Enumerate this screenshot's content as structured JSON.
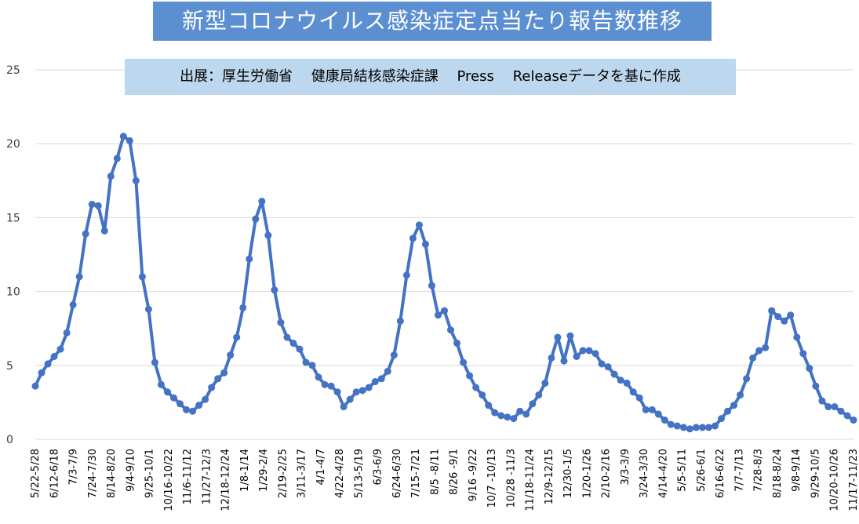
{
  "title": "新型コロナウイルス感染症定点当たり報告数推移",
  "source": "出展：厚生労働省　 健康局結核感染症課　 Press　 Releaseデータを基に作成",
  "colors": {
    "title_bg": "#5b8fd2",
    "source_bg": "#bdd7ee",
    "line": "#4472c4",
    "grid": "#d9d9d9"
  },
  "chart_data": {
    "type": "line",
    "title": "新型コロナウイルス感染症定点当たり報告数推移",
    "xlabel": "",
    "ylabel": "",
    "ylim": [
      0,
      25
    ],
    "yticks": [
      0,
      5,
      10,
      15,
      20,
      25
    ],
    "grid": "horizontal",
    "legend": "none",
    "x_tick_labels": [
      "5/22-5/28",
      "6/12-6/18",
      "7/3-7/9",
      "7/24-7/30",
      "8/14-8/20",
      "9/4-9/10",
      "9/25-10/1",
      "10/16-10/22",
      "11/6-11/12",
      "11/27-12/3",
      "12/18-12/24",
      "1/8-1/14",
      "1/29-2/4",
      "2/19-2/25",
      "3/11-3/17",
      "4/1-4/7",
      "4/22-4/28",
      "5/13-5/19",
      "6/3-6/9",
      "6/24-6/30",
      "7/15-7/21",
      "8/5 -8/11",
      "8/26 -9/1",
      "9/16 -9/22",
      "10/7 -10/13",
      "10/28 -11/3",
      "11/18-11/24",
      "12/9-12/15",
      "12/30-1/5",
      "1/20-1/26",
      "2/10-2/16",
      "3/3-3/9",
      "3/24-3/30",
      "4/14-4/20",
      "5/5-5/11",
      "5/26-6/1",
      "6/16-6/22",
      "7/7-7/13",
      "7/28-8/3",
      "8/18-8/24",
      "9/8-9/14",
      "9/29-10/5",
      "10/20-10/26",
      "11/17-11/23"
    ],
    "series": [
      {
        "values": [
          3.6,
          4.5,
          5.1,
          5.6,
          6.1,
          7.2,
          9.1,
          11.0,
          13.9,
          15.9,
          15.8,
          14.1,
          17.8,
          19.0,
          20.5,
          20.2,
          17.5,
          11.0,
          8.8,
          5.2,
          3.7,
          3.2,
          2.8,
          2.4,
          2.0,
          1.9,
          2.3,
          2.7,
          3.5,
          4.1,
          4.5,
          5.7,
          6.9,
          8.9,
          12.2,
          14.9,
          16.1,
          13.8,
          10.1,
          7.9,
          6.9,
          6.5,
          6.1,
          5.2,
          5.0,
          4.2,
          3.7,
          3.6,
          3.2,
          2.2,
          2.7,
          3.2,
          3.3,
          3.5,
          3.9,
          4.1,
          4.6,
          5.7,
          8.0,
          11.1,
          13.6,
          14.5,
          13.2,
          10.4,
          8.4,
          8.7,
          7.4,
          6.5,
          5.2,
          4.3,
          3.5,
          3.0,
          2.3,
          1.8,
          1.6,
          1.5,
          1.4,
          1.9,
          1.7,
          2.4,
          3.0,
          3.8,
          5.5,
          6.9,
          5.3,
          7.0,
          5.6,
          6.0,
          6.0,
          5.8,
          5.1,
          4.9,
          4.4,
          4.0,
          3.8,
          3.2,
          2.8,
          2.0,
          2.0,
          1.7,
          1.3,
          1.0,
          0.9,
          0.8,
          0.7,
          0.8,
          0.8,
          0.8,
          0.9,
          1.4,
          1.9,
          2.3,
          3.0,
          4.1,
          5.5,
          6.0,
          6.2,
          8.7,
          8.3,
          8.0,
          8.4,
          6.9,
          5.8,
          4.8,
          3.6,
          2.6,
          2.2,
          2.2,
          1.9,
          1.6,
          1.3
        ]
      }
    ]
  }
}
